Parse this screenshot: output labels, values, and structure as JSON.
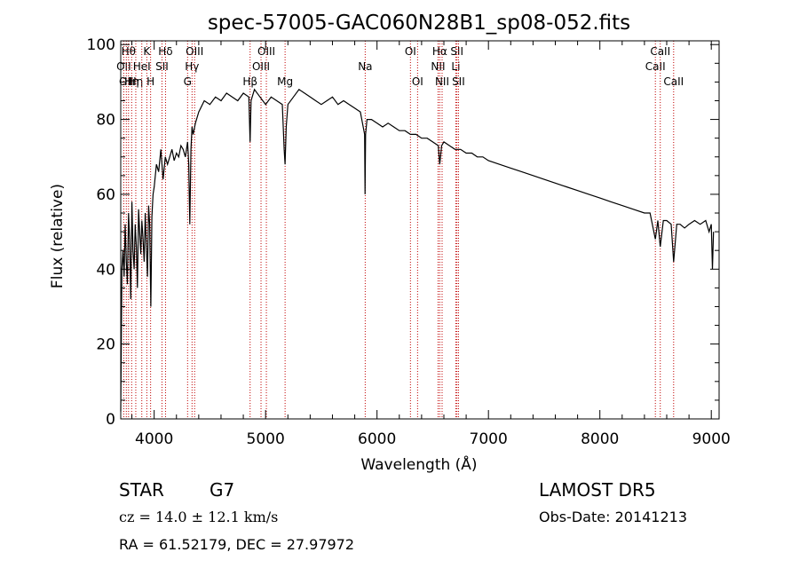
{
  "chart_data": {
    "type": "line",
    "title": "spec-57005-GAC060N28B1_sp08-052.fits",
    "xlabel": "Wavelength (Å)",
    "ylabel": "Flux (relative)",
    "xlim": [
      3700,
      9070
    ],
    "ylim": [
      0,
      101
    ],
    "xticks": [
      "4000",
      "5000",
      "6000",
      "7000",
      "8000",
      "9000"
    ],
    "yticks": [
      "0",
      "20",
      "40",
      "60",
      "80",
      "100"
    ],
    "grid": false,
    "line_color": "#000000",
    "marker_color": "#c00000",
    "series": [
      {
        "x": [
          3700,
          3710,
          3720,
          3730,
          3740,
          3750,
          3760,
          3770,
          3780,
          3790,
          3800,
          3810,
          3820,
          3830,
          3840,
          3850,
          3860,
          3870,
          3880,
          3890,
          3900,
          3910,
          3920,
          3930,
          3940,
          3950,
          3960,
          3970,
          3980,
          3990,
          4000,
          4020,
          4040,
          4060,
          4080,
          4100,
          4120,
          4140,
          4160,
          4180,
          4200,
          4220,
          4240,
          4260,
          4280,
          4300,
          4310,
          4320,
          4330,
          4340,
          4350,
          4370,
          4400,
          4450,
          4500,
          4550,
          4600,
          4650,
          4700,
          4750,
          4800,
          4850,
          4861,
          4870,
          4900,
          4950,
          5000,
          5050,
          5100,
          5150,
          5167,
          5175,
          5185,
          5200,
          5250,
          5300,
          5350,
          5400,
          5450,
          5500,
          5550,
          5600,
          5650,
          5700,
          5750,
          5800,
          5850,
          5889,
          5893,
          5897,
          5910,
          5950,
          6000,
          6050,
          6100,
          6150,
          6200,
          6250,
          6300,
          6350,
          6400,
          6450,
          6500,
          6550,
          6563,
          6580,
          6600,
          6650,
          6700,
          6750,
          6800,
          6850,
          6900,
          6950,
          7000,
          7100,
          7200,
          7300,
          7400,
          7500,
          7600,
          7700,
          7800,
          7900,
          8000,
          8100,
          8200,
          8300,
          8400,
          8450,
          8498,
          8520,
          8542,
          8570,
          8600,
          8640,
          8662,
          8690,
          8720,
          8760,
          8800,
          8850,
          8900,
          8950,
          8980,
          9000,
          9010,
          9020
        ],
        "values": [
          2,
          40,
          45,
          38,
          52,
          42,
          36,
          55,
          48,
          32,
          58,
          45,
          40,
          52,
          46,
          35,
          56,
          50,
          44,
          53,
          48,
          42,
          55,
          46,
          38,
          57,
          52,
          30,
          54,
          60,
          62,
          68,
          66,
          72,
          64,
          70,
          68,
          70,
          72,
          69,
          71,
          70,
          73,
          72,
          70,
          74,
          68,
          52,
          72,
          78,
          76,
          79,
          82,
          85,
          84,
          86,
          85,
          87,
          86,
          85,
          87,
          86,
          74,
          85,
          88,
          86,
          84,
          86,
          85,
          84,
          72,
          68,
          78,
          84,
          86,
          88,
          87,
          86,
          85,
          84,
          85,
          86,
          84,
          85,
          84,
          83,
          82,
          76,
          60,
          76,
          80,
          80,
          79,
          78,
          79,
          78,
          77,
          77,
          76,
          76,
          75,
          75,
          74,
          73,
          68,
          73,
          74,
          73,
          72,
          72,
          71,
          71,
          70,
          70,
          69,
          68,
          67,
          66,
          65,
          64,
          63,
          62,
          61,
          60,
          59,
          58,
          57,
          56,
          55,
          55,
          48,
          53,
          46,
          53,
          53,
          52,
          42,
          52,
          52,
          51,
          52,
          53,
          52,
          53,
          50,
          52,
          40,
          50
        ]
      }
    ],
    "markers": [
      {
        "x": 3727,
        "label": "OII",
        "row": 2
      },
      {
        "x": 3750,
        "label": "OII",
        "row": 3
      },
      {
        "x": 3770,
        "label": "Hθ",
        "row": 1
      },
      {
        "x": 3798,
        "label": "Hη",
        "row": 3
      },
      {
        "x": 3835,
        "label": "Hη",
        "row": 3
      },
      {
        "x": 3889,
        "label": "HeI",
        "row": 2
      },
      {
        "x": 3934,
        "label": "K",
        "row": 1
      },
      {
        "x": 3968,
        "label": "H",
        "row": 3
      },
      {
        "x": 4070,
        "label": "SII",
        "row": 2
      },
      {
        "x": 4102,
        "label": "Hδ",
        "row": 1
      },
      {
        "x": 4300,
        "label": "G",
        "row": 3
      },
      {
        "x": 4340,
        "label": "Hγ",
        "row": 2
      },
      {
        "x": 4363,
        "label": "OIII",
        "row": 1
      },
      {
        "x": 4861,
        "label": "Hβ",
        "row": 3
      },
      {
        "x": 4959,
        "label": "OIII",
        "row": 2
      },
      {
        "x": 5007,
        "label": "OIII",
        "row": 1
      },
      {
        "x": 5175,
        "label": "Mg",
        "row": 3
      },
      {
        "x": 5894,
        "label": "Na",
        "row": 2
      },
      {
        "x": 6300,
        "label": "OI",
        "row": 1
      },
      {
        "x": 6364,
        "label": "OI",
        "row": 3
      },
      {
        "x": 6548,
        "label": "NII",
        "row": 2
      },
      {
        "x": 6563,
        "label": "Hα",
        "row": 1
      },
      {
        "x": 6584,
        "label": "NII",
        "row": 3
      },
      {
        "x": 6707,
        "label": "Li",
        "row": 2
      },
      {
        "x": 6717,
        "label": "SII",
        "row": 1
      },
      {
        "x": 6731,
        "label": "SII",
        "row": 3
      },
      {
        "x": 8498,
        "label": "CaII",
        "row": 2
      },
      {
        "x": 8542,
        "label": "CaII",
        "row": 1
      },
      {
        "x": 8662,
        "label": "CaII",
        "row": 3
      }
    ]
  },
  "info": {
    "class_label": "STAR",
    "subclass": "G7",
    "survey": "LAMOST DR5",
    "cz": "cz = 14.0 ± 12.1 km/s",
    "obs_date": "Obs-Date: 20141213",
    "coords": "RA =  61.52179, DEC =  27.97972"
  }
}
